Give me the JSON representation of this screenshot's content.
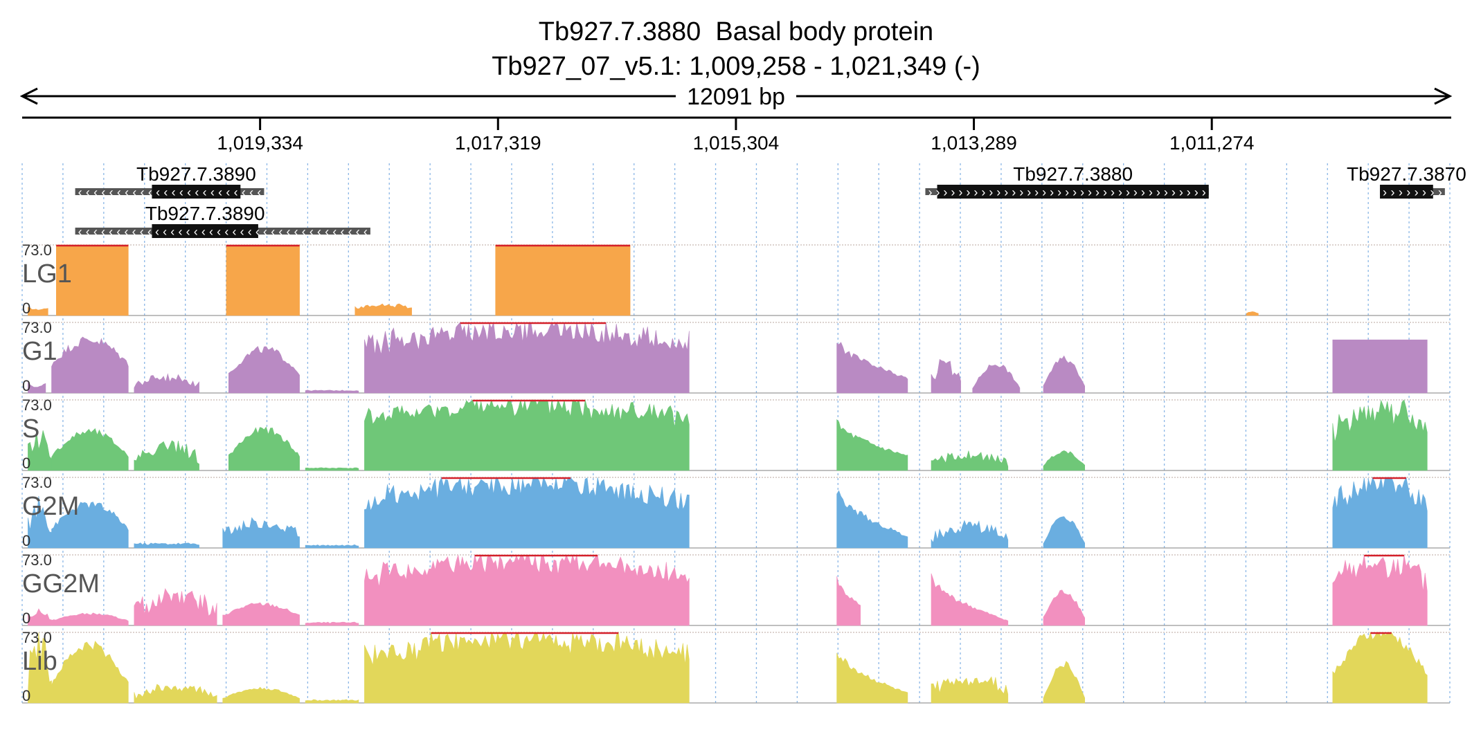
{
  "title": "Tb927.7.3880  Basal body protein",
  "subtitle": "Tb927_07_v5.1: 1,009,258 - 1,021,349 (-)",
  "span_label": "12091 bp",
  "chart_data": {
    "type": "area",
    "x_axis": {
      "direction": "reversed",
      "range": [
        1021349,
        1009258
      ],
      "ticks": [
        "1,019,334",
        "1,017,319",
        "1,015,304",
        "1,013,289",
        "1,011,274"
      ],
      "tick_values": [
        1019334,
        1017319,
        1015304,
        1013289,
        1011274
      ]
    },
    "genes": [
      {
        "name": "Tb927.7.3890",
        "start": 1020900,
        "end": 1019300,
        "cds_start": 1020250,
        "cds_end": 1019500,
        "label_row": 0,
        "strand": "-"
      },
      {
        "name": "Tb927.7.3890",
        "start": 1020900,
        "end": 1018400,
        "cds_start": 1020250,
        "cds_end": 1019350,
        "label_row": 1,
        "strand": "-"
      },
      {
        "name": "Tb927.7.3880",
        "start": 1013700,
        "end": 1011300,
        "cds_start": 1013600,
        "cds_end": 1011300,
        "label_row": 0,
        "strand": "+"
      },
      {
        "name": "Tb927.7.3870",
        "start": 1009850,
        "end": 1009300,
        "cds_start": 1009850,
        "cds_end": 1009400,
        "label_row": 0,
        "strand": "+"
      }
    ],
    "y_max": 73.0,
    "y_min": 0,
    "y_max_label": "73.0",
    "y_min_label": "0",
    "clip_color": "#d4202a",
    "tracks": [
      {
        "name": "LG1",
        "color": "#f7a64a",
        "segments": [
          {
            "from": 1021300,
            "to": 1021130,
            "base": 8,
            "peak": 6,
            "shape": "dome"
          },
          {
            "from": 1021060,
            "to": 1020450,
            "base": 73,
            "peak": 73,
            "shape": "plateau"
          },
          {
            "from": 1019620,
            "to": 1019000,
            "base": 73,
            "peak": 73,
            "shape": "plateau"
          },
          {
            "from": 1018530,
            "to": 1018050,
            "base": 6,
            "peak": 12,
            "shape": "spiky"
          },
          {
            "from": 1017340,
            "to": 1016200,
            "base": 73,
            "peak": 73,
            "shape": "plateau"
          },
          {
            "from": 1010980,
            "to": 1010880,
            "base": 2,
            "peak": 4,
            "shape": "dome"
          }
        ]
      },
      {
        "name": "G1",
        "color": "#b98ac3",
        "segments": [
          {
            "from": 1021300,
            "to": 1021150,
            "base": 10,
            "peak": 6,
            "shape": "dome"
          },
          {
            "from": 1021100,
            "to": 1020450,
            "base": 30,
            "peak": 55,
            "shape": "dome"
          },
          {
            "from": 1020400,
            "to": 1019850,
            "base": 5,
            "peak": 18,
            "shape": "spiky"
          },
          {
            "from": 1019600,
            "to": 1019000,
            "base": 20,
            "peak": 45,
            "shape": "dome"
          },
          {
            "from": 1018950,
            "to": 1018500,
            "base": 2,
            "peak": 4,
            "shape": "flat"
          },
          {
            "from": 1018450,
            "to": 1015700,
            "base": 40,
            "peak": 73,
            "shape": "spiky"
          },
          {
            "from": 1014450,
            "to": 1013850,
            "base": 15,
            "peak": 55,
            "shape": "decay"
          },
          {
            "from": 1013650,
            "to": 1013400,
            "base": 5,
            "peak": 35,
            "shape": "spiky"
          },
          {
            "from": 1013300,
            "to": 1012900,
            "base": 5,
            "peak": 30,
            "shape": "dome"
          },
          {
            "from": 1012700,
            "to": 1012350,
            "base": 8,
            "peak": 35,
            "shape": "dome"
          },
          {
            "from": 1010250,
            "to": 1009450,
            "base": 55,
            "peak": 73,
            "shape": "plateau"
          }
        ]
      },
      {
        "name": "S",
        "color": "#6fc778",
        "segments": [
          {
            "from": 1021300,
            "to": 1021100,
            "base": 8,
            "peak": 40,
            "shape": "spiky"
          },
          {
            "from": 1021100,
            "to": 1020450,
            "base": 15,
            "peak": 40,
            "shape": "dome"
          },
          {
            "from": 1020400,
            "to": 1019850,
            "base": 5,
            "peak": 30,
            "shape": "spiky"
          },
          {
            "from": 1019600,
            "to": 1019000,
            "base": 15,
            "peak": 42,
            "shape": "dome"
          },
          {
            "from": 1018950,
            "to": 1018500,
            "base": 2,
            "peak": 4,
            "shape": "flat"
          },
          {
            "from": 1018450,
            "to": 1015700,
            "base": 45,
            "peak": 73,
            "shape": "spiky"
          },
          {
            "from": 1014450,
            "to": 1013850,
            "base": 15,
            "peak": 50,
            "shape": "decay"
          },
          {
            "from": 1013650,
            "to": 1013000,
            "base": 3,
            "peak": 18,
            "shape": "spiky"
          },
          {
            "from": 1012700,
            "to": 1012350,
            "base": 5,
            "peak": 20,
            "shape": "dome"
          },
          {
            "from": 1010250,
            "to": 1009450,
            "base": 30,
            "peak": 73,
            "shape": "spiky"
          }
        ]
      },
      {
        "name": "G2M",
        "color": "#6aaee0",
        "segments": [
          {
            "from": 1021300,
            "to": 1021100,
            "base": 10,
            "peak": 50,
            "shape": "spiky"
          },
          {
            "from": 1021100,
            "to": 1020450,
            "base": 20,
            "peak": 45,
            "shape": "dome"
          },
          {
            "from": 1020400,
            "to": 1019850,
            "base": 3,
            "peak": 8,
            "shape": "flat"
          },
          {
            "from": 1019650,
            "to": 1019000,
            "base": 8,
            "peak": 30,
            "shape": "spiky"
          },
          {
            "from": 1018950,
            "to": 1018500,
            "base": 2,
            "peak": 5,
            "shape": "flat"
          },
          {
            "from": 1018450,
            "to": 1015700,
            "base": 40,
            "peak": 73,
            "shape": "spiky"
          },
          {
            "from": 1014450,
            "to": 1013850,
            "base": 12,
            "peak": 60,
            "shape": "decay"
          },
          {
            "from": 1013650,
            "to": 1013000,
            "base": 3,
            "peak": 28,
            "shape": "spiky"
          },
          {
            "from": 1012700,
            "to": 1012350,
            "base": 5,
            "peak": 32,
            "shape": "dome"
          },
          {
            "from": 1010250,
            "to": 1009450,
            "base": 35,
            "peak": 73,
            "shape": "spiky"
          }
        ]
      },
      {
        "name": "GG2M",
        "color": "#f290bf",
        "segments": [
          {
            "from": 1021300,
            "to": 1021100,
            "base": 3,
            "peak": 18,
            "shape": "spiky"
          },
          {
            "from": 1021100,
            "to": 1020450,
            "base": 5,
            "peak": 12,
            "shape": "dome"
          },
          {
            "from": 1020400,
            "to": 1019700,
            "base": 3,
            "peak": 40,
            "shape": "spiky"
          },
          {
            "from": 1019650,
            "to": 1019000,
            "base": 10,
            "peak": 22,
            "shape": "dome"
          },
          {
            "from": 1018950,
            "to": 1018500,
            "base": 2,
            "peak": 5,
            "shape": "flat"
          },
          {
            "from": 1018450,
            "to": 1015700,
            "base": 40,
            "peak": 73,
            "shape": "spiky"
          },
          {
            "from": 1014450,
            "to": 1014250,
            "base": 20,
            "peak": 50,
            "shape": "decay"
          },
          {
            "from": 1013650,
            "to": 1013000,
            "base": 5,
            "peak": 50,
            "shape": "decay"
          },
          {
            "from": 1012700,
            "to": 1012350,
            "base": 8,
            "peak": 35,
            "shape": "dome"
          },
          {
            "from": 1010250,
            "to": 1009450,
            "base": 30,
            "peak": 73,
            "shape": "spiky"
          }
        ]
      },
      {
        "name": "Lib",
        "color": "#e2d75a",
        "segments": [
          {
            "from": 1021300,
            "to": 1021100,
            "base": 10,
            "peak": 73,
            "shape": "spiky"
          },
          {
            "from": 1021100,
            "to": 1020450,
            "base": 20,
            "peak": 60,
            "shape": "dome"
          },
          {
            "from": 1020400,
            "to": 1019700,
            "base": 3,
            "peak": 20,
            "shape": "spiky"
          },
          {
            "from": 1019650,
            "to": 1019000,
            "base": 5,
            "peak": 15,
            "shape": "dome"
          },
          {
            "from": 1018950,
            "to": 1018500,
            "base": 2,
            "peak": 5,
            "shape": "flat"
          },
          {
            "from": 1018450,
            "to": 1015700,
            "base": 40,
            "peak": 73,
            "shape": "spiky"
          },
          {
            "from": 1014450,
            "to": 1013850,
            "base": 10,
            "peak": 55,
            "shape": "decay"
          },
          {
            "from": 1013650,
            "to": 1013000,
            "base": 5,
            "peak": 30,
            "shape": "spiky"
          },
          {
            "from": 1012700,
            "to": 1012350,
            "base": 5,
            "peak": 40,
            "shape": "dome"
          },
          {
            "from": 1010250,
            "to": 1009450,
            "base": 30,
            "peak": 73,
            "shape": "dome"
          }
        ]
      }
    ]
  }
}
